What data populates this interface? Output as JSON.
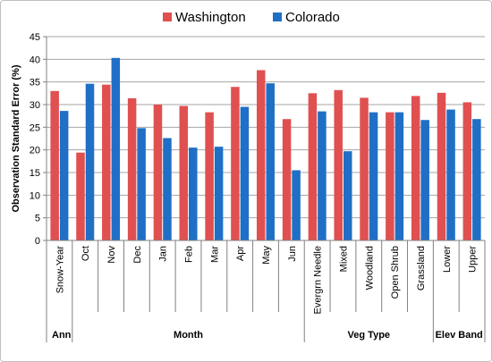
{
  "chart_data": {
    "type": "bar",
    "ylabel": "Observation Standard Error (%)",
    "ylim": [
      0,
      45
    ],
    "ytick_step": 5,
    "grid": true,
    "legend_position": "top-center",
    "categories": [
      "Snow-Year",
      "Oct",
      "Nov",
      "Dec",
      "Jan",
      "Feb",
      "Mar",
      "Apr",
      "May",
      "Jun",
      "Evergrn Needle",
      "Mixed",
      "Woodland",
      "Open Shrub",
      "Grassland",
      "Lower",
      "Upper"
    ],
    "series": [
      {
        "name": "Washington",
        "color": "#e05050",
        "values": [
          33.0,
          19.4,
          34.4,
          31.4,
          30.0,
          29.7,
          28.3,
          33.9,
          37.6,
          26.8,
          32.5,
          33.2,
          31.5,
          28.3,
          31.9,
          32.6,
          30.5
        ]
      },
      {
        "name": "Colorado",
        "color": "#1f6fc6",
        "values": [
          28.6,
          34.6,
          40.3,
          24.8,
          22.6,
          20.5,
          20.7,
          29.5,
          34.7,
          15.5,
          28.5,
          19.7,
          28.3,
          28.3,
          26.6,
          28.9,
          26.8
        ]
      }
    ],
    "groups": [
      {
        "label": "Ann",
        "start": 0,
        "end": 0
      },
      {
        "label": "Month",
        "start": 1,
        "end": 9
      },
      {
        "label": "Veg Type",
        "start": 10,
        "end": 14
      },
      {
        "label": "Elev Band",
        "start": 15,
        "end": 16
      }
    ]
  }
}
